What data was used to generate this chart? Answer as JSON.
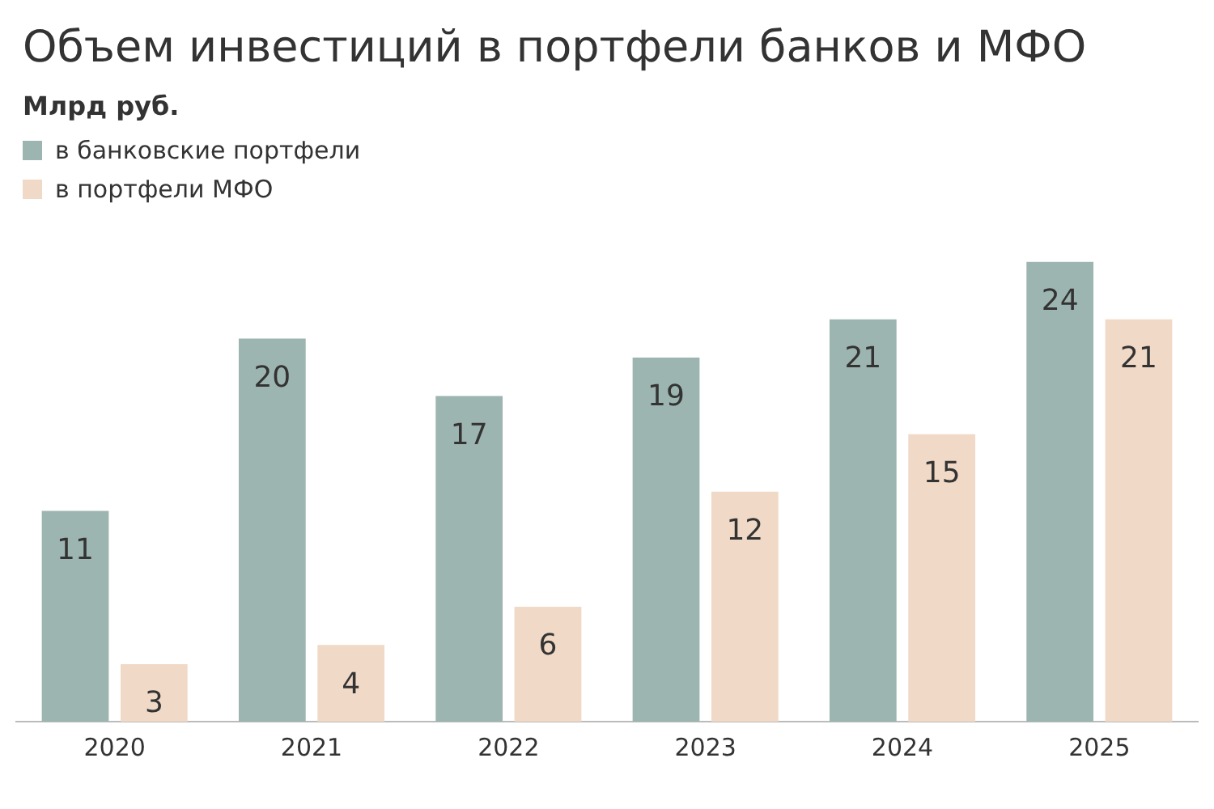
{
  "chart_data": {
    "type": "bar",
    "title": "Объем инвестиций в портфели банков и МФО",
    "subtitle": "Млрд руб.",
    "categories": [
      "2020",
      "2021",
      "2022",
      "2023",
      "2024",
      "2025"
    ],
    "series": [
      {
        "name": "в банковские портфели",
        "color": "#9db5b0",
        "values": [
          11,
          20,
          17,
          19,
          21,
          24
        ]
      },
      {
        "name": "в портфели МФО",
        "color": "#f0d9c6",
        "values": [
          3,
          4,
          6,
          12,
          15,
          21
        ]
      }
    ],
    "data_labels": true,
    "legend": "top left",
    "grid": false
  }
}
